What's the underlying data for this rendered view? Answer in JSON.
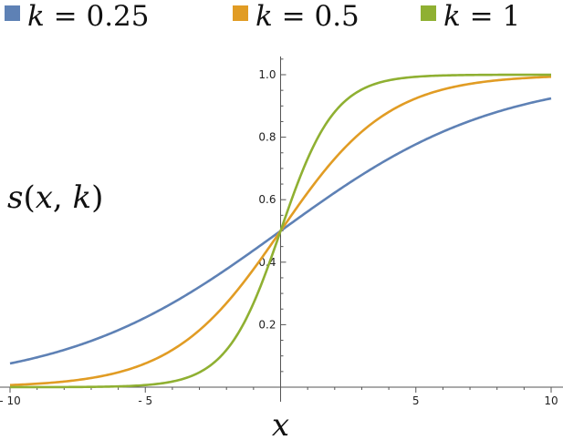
{
  "chart_data": {
    "type": "line",
    "function": "s(x,k) = 1 / (1 + exp(-k x))",
    "xlabel": "x",
    "ylabel": "s(x, k)",
    "xlim": [
      -10,
      10
    ],
    "ylim": [
      0,
      1.05
    ],
    "x_ticks": [
      -10,
      -5,
      5,
      10
    ],
    "x_tick_labels": [
      "- 10",
      "- 5",
      "5",
      "10"
    ],
    "y_ticks": [
      0.2,
      0.4,
      0.6,
      0.8,
      1.0
    ],
    "y_tick_labels": [
      "0.2",
      "0.4",
      "0.6",
      "0.8",
      "1.0"
    ],
    "legend_position": "top",
    "series": [
      {
        "name": "k = 0.25",
        "k_label": "k",
        "k_value": "0.25",
        "k": 0.25,
        "color": "#5e81b5"
      },
      {
        "name": "k = 0.5",
        "k_label": "k",
        "k_value": "0.5",
        "k": 0.5,
        "color": "#e19c24"
      },
      {
        "name": "k = 1",
        "k_label": "k",
        "k_value": "1",
        "k": 1,
        "color": "#8fb032"
      }
    ],
    "grid": false
  }
}
